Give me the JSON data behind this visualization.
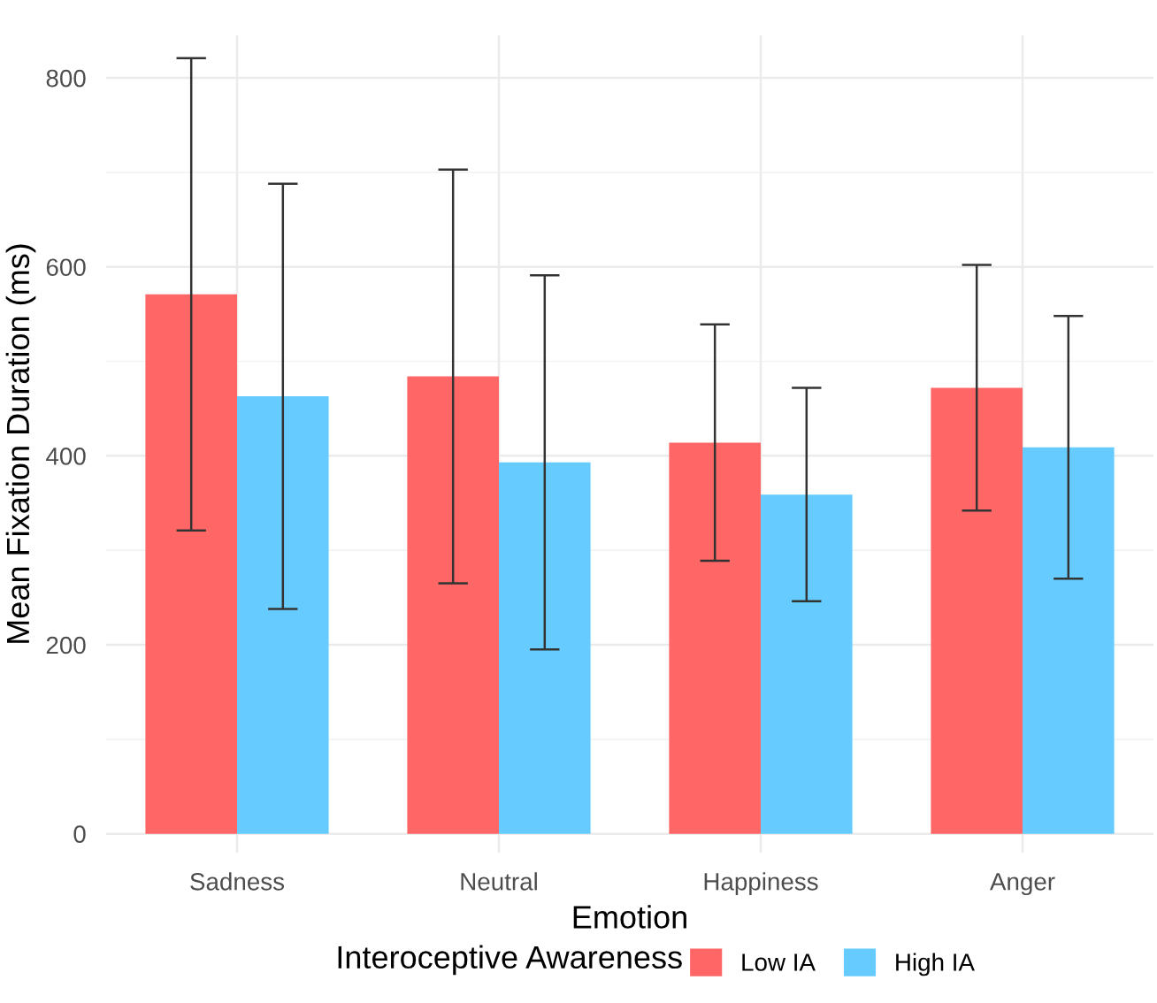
{
  "chart_data": {
    "type": "bar",
    "xlabel": "Emotion",
    "ylabel": "Mean Fixation Duration (ms)",
    "legend_title": "Interoceptive Awareness",
    "categories": [
      "Sadness",
      "Neutral",
      "Happiness",
      "Anger"
    ],
    "series": [
      {
        "name": "Low IA",
        "color": "#ff6666",
        "values": [
          571,
          484,
          414,
          472
        ],
        "errors": [
          250,
          219,
          125,
          130
        ]
      },
      {
        "name": "High IA",
        "color": "#66ccff",
        "values": [
          463,
          393,
          359,
          409
        ],
        "errors": [
          225,
          198,
          113,
          139
        ]
      }
    ],
    "ylim": [
      -20,
      845
    ],
    "yticks": [
      0,
      200,
      400,
      600,
      800
    ],
    "grid": true,
    "legend": "bottom"
  }
}
